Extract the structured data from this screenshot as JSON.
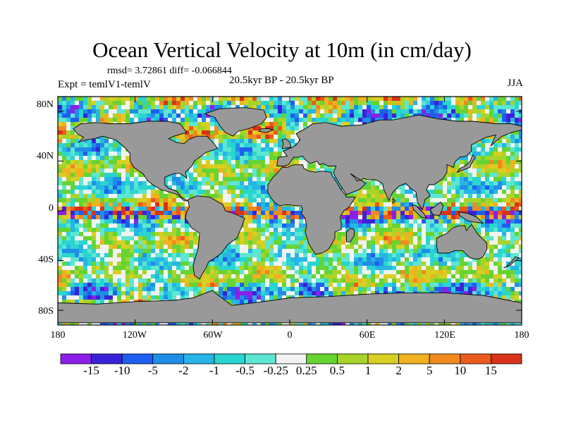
{
  "title": "Ocean Vertical Velocity at 10m (in cm/day)",
  "stats_line": "rmsd= 3.72861 diff= -0.066844",
  "experiment_line": "Expt = temlV1-temlV",
  "period_line": "20.5kyr BP - 20.5kyr BP",
  "season": "JJA",
  "lat_labels": [
    "80N",
    "40N",
    "0",
    "40S",
    "80S"
  ],
  "lon_labels": [
    "180",
    "120W",
    "60W",
    "0",
    "60E",
    "120E",
    "180"
  ],
  "colorbar": {
    "labels": [
      "-15",
      "-10",
      "-5",
      "-2",
      "-1",
      "-0.5",
      "-0.25",
      "0.25",
      "0.5",
      "1",
      "2",
      "5",
      "10",
      "15"
    ],
    "colors": [
      "#8b1fe8",
      "#3a22d8",
      "#1e5ef0",
      "#1f8ee6",
      "#27b4e6",
      "#29d5d0",
      "#5de6d2",
      "#f2f2f2",
      "#66d432",
      "#a8d42a",
      "#d9cf22",
      "#f0b21f",
      "#f08a1e",
      "#ec5a1c",
      "#d8321a"
    ]
  },
  "colors": {
    "land": "#999999",
    "coast": "#000000"
  }
}
